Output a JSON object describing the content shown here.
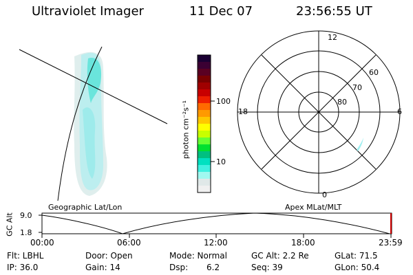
{
  "header": {
    "instrument": "Ultraviolet Imager",
    "date": "11 Dec 07",
    "time": "23:56:55 UT"
  },
  "colorbar": {
    "label": "photon cm⁻²s⁻¹",
    "ticks": [
      "100",
      "10"
    ],
    "colors_top_to_bottom": [
      "#1a0033",
      "#3b0033",
      "#5a0022",
      "#7a0000",
      "#a00000",
      "#c80000",
      "#ee2000",
      "#ff6a00",
      "#ff9a00",
      "#ffc800",
      "#ffff00",
      "#c8ff00",
      "#66ff33",
      "#00e030",
      "#00c080",
      "#00e0c0",
      "#40f0e0",
      "#a0f8f0",
      "#e0e8e8",
      "#f0f0f0"
    ]
  },
  "polar": {
    "mlt_labels": {
      "top": "12",
      "bottom": "0",
      "left": "18",
      "right": "6"
    },
    "lat_labels": [
      "60",
      "70",
      "80"
    ]
  },
  "panels": {
    "left_label": "Geographic Lat/Lon",
    "right_label": "Apex MLat/MLT"
  },
  "altitude_plot": {
    "ylabel": "GC Alt",
    "y_ticks": [
      "9.0",
      "1.8"
    ],
    "x_ticks": [
      "00:00",
      "06:00",
      "12:00",
      "18:00",
      "23:59"
    ]
  },
  "info": {
    "flt": "Flt: LBHL",
    "ip": "IP: 36.0",
    "door": "Door: Open",
    "gain": "Gain: 14",
    "mode": "Mode: Normal",
    "dsp_label": "Dsp:",
    "dsp_value": "6.2",
    "gc_alt": "GC Alt: 2.2 Re",
    "seq": "Seq: 39",
    "glat": "GLat: 71.5",
    "glon": "GLon: 50.4"
  }
}
